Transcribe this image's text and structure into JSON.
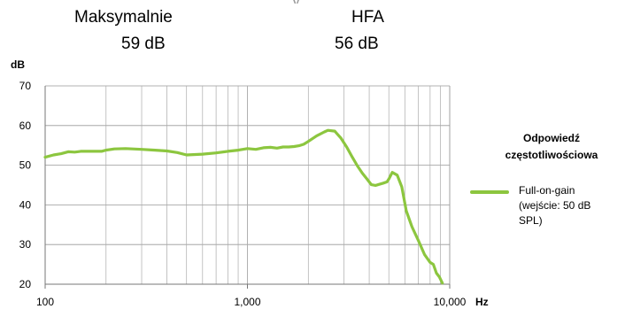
{
  "header": {
    "top_fragment": "y",
    "stats": [
      {
        "label": "Maksymalnie",
        "value": "59  dB"
      },
      {
        "label": "HFA",
        "value": "56  dB"
      }
    ]
  },
  "chart_data": {
    "type": "line",
    "title": "",
    "ylabel": "dB",
    "xlabel": "Hz",
    "x_scale": "log",
    "xlim": [
      100,
      10000
    ],
    "ylim": [
      20,
      70
    ],
    "x_ticks": [
      100,
      1000,
      10000
    ],
    "x_tick_labels": [
      "100",
      "1,000",
      "10,000"
    ],
    "y_ticks": [
      20,
      30,
      40,
      50,
      60,
      70
    ],
    "y_tick_labels": [
      "20",
      "30",
      "40",
      "50",
      "60",
      "70"
    ],
    "grid": true,
    "legend": {
      "position": "right",
      "title": "Odpowiedź częstotliwościowa",
      "entries": [
        "Full-on-gain (wejście: 50 dB SPL)"
      ]
    },
    "series": [
      {
        "name": "Full-on-gain (wejście: 50 dB SPL)",
        "color": "#8cc63f",
        "x": [
          100,
          110,
          120,
          130,
          140,
          150,
          170,
          190,
          200,
          220,
          250,
          300,
          350,
          400,
          450,
          500,
          600,
          700,
          800,
          900,
          1000,
          1100,
          1200,
          1300,
          1400,
          1500,
          1600,
          1700,
          1800,
          1900,
          2000,
          2200,
          2400,
          2500,
          2700,
          2900,
          3100,
          3300,
          3500,
          3700,
          3900,
          4100,
          4300,
          4500,
          4700,
          4900,
          5000,
          5200,
          5500,
          5800,
          6100,
          6500,
          7000,
          7500,
          8000,
          8300,
          8600,
          8900,
          9200
        ],
        "y": [
          52.0,
          52.6,
          52.9,
          53.4,
          53.3,
          53.5,
          53.5,
          53.5,
          53.8,
          54.1,
          54.2,
          54.0,
          53.8,
          53.6,
          53.2,
          52.6,
          52.8,
          53.1,
          53.5,
          53.8,
          54.2,
          54.0,
          54.4,
          54.5,
          54.3,
          54.6,
          54.6,
          54.7,
          54.9,
          55.3,
          56.0,
          57.4,
          58.4,
          58.8,
          58.6,
          56.8,
          54.5,
          52.0,
          49.8,
          48.0,
          46.5,
          45.1,
          44.9,
          45.2,
          45.5,
          45.8,
          46.5,
          48.2,
          47.5,
          44.5,
          38.5,
          34.5,
          31.0,
          27.5,
          25.5,
          25.0,
          22.8,
          21.8,
          20.3
        ]
      }
    ]
  }
}
